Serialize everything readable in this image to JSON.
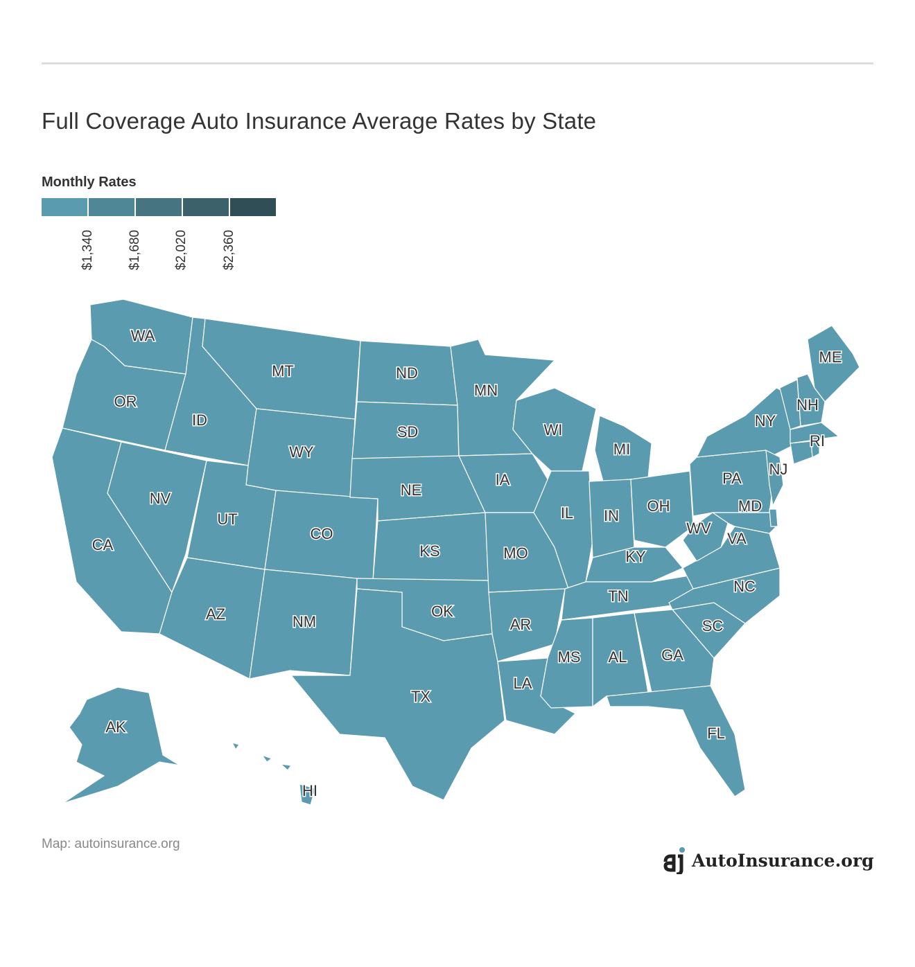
{
  "title": "Full Coverage Auto Insurance Average Rates by State",
  "legend": {
    "title": "Monthly Rates",
    "ticks": [
      "$1,340",
      "$1,680",
      "$2,020",
      "$2,360"
    ],
    "colors": [
      "#5b9baf",
      "#4f8797",
      "#467480",
      "#3c616b",
      "#2f4e56"
    ]
  },
  "map": {
    "fill_color": "#5b9baf",
    "states": [
      "WA",
      "OR",
      "CA",
      "NV",
      "ID",
      "MT",
      "WY",
      "UT",
      "AZ",
      "CO",
      "NM",
      "ND",
      "SD",
      "NE",
      "KS",
      "OK",
      "TX",
      "MN",
      "IA",
      "MO",
      "AR",
      "LA",
      "WI",
      "IL",
      "MI",
      "IN",
      "OH",
      "KY",
      "TN",
      "MS",
      "AL",
      "GA",
      "FL",
      "SC",
      "NC",
      "VA",
      "WV",
      "PA",
      "NY",
      "MD",
      "NJ",
      "ME",
      "NH",
      "RI",
      "AK",
      "HI"
    ]
  },
  "credit": "Map: autoinsurance.org",
  "logo": {
    "text": "AutoInsurance.org",
    "icon": "autoinsurance-logo-icon"
  }
}
